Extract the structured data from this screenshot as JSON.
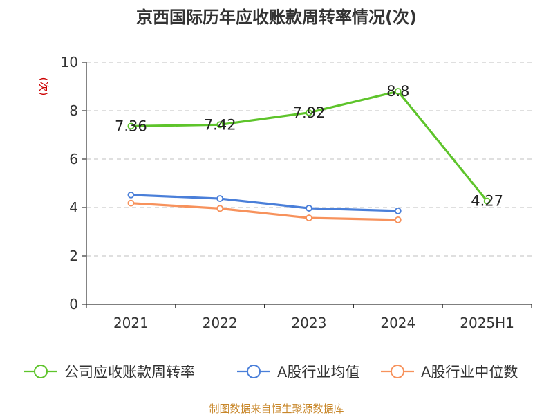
{
  "chart_data": {
    "type": "line",
    "title": "京西国际历年应收账款周转率情况(次)",
    "ylabel": "(次)",
    "xlabel": "",
    "ylim": [
      0,
      10
    ],
    "yticks": [
      0,
      2,
      4,
      6,
      8,
      10
    ],
    "grid": true,
    "legend_position": "bottom",
    "categories": [
      "2021",
      "2022",
      "2023",
      "2024",
      "2025H1"
    ],
    "series": [
      {
        "name": "公司应收账款周转率",
        "color": "#5ec42b",
        "values": [
          7.36,
          7.42,
          7.92,
          8.8,
          4.27
        ],
        "labels": [
          "7.36",
          "7.42",
          "7.92",
          "8.8",
          "4.27"
        ],
        "show_labels": true
      },
      {
        "name": "A股行业均值",
        "color": "#4a7fd9",
        "values": [
          4.52,
          4.37,
          3.97,
          3.86,
          null
        ],
        "show_labels": false
      },
      {
        "name": "A股行业中位数",
        "color": "#f7925c",
        "values": [
          4.18,
          3.96,
          3.57,
          3.49,
          null
        ],
        "show_labels": false
      }
    ]
  },
  "footer": {
    "source": "制图数据来自恒生聚源数据库"
  }
}
